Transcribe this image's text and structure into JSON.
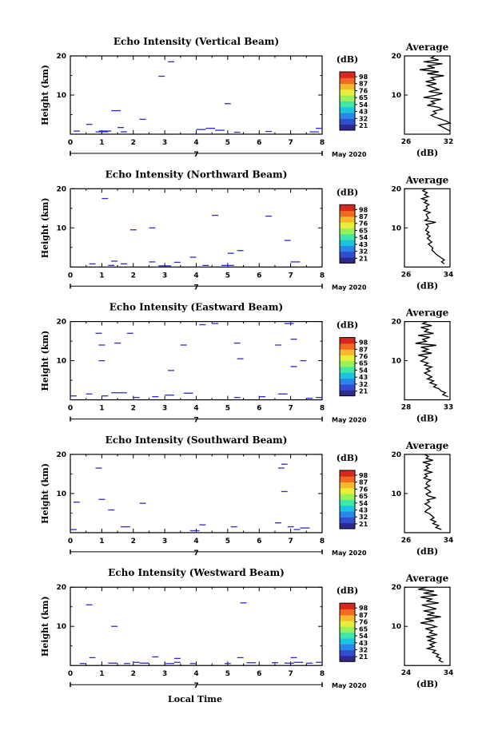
{
  "figure": {
    "xlabel": "Local Time",
    "date_label": "May 2020",
    "day_marker": "7",
    "cbar_unit": "(dB)",
    "avg_title": "Average",
    "avg_xunit": "(dB)",
    "ylabel": "Height (km)"
  },
  "colors": {
    "echo": "#2a2ad0",
    "colorbar": [
      "#2e2a8c",
      "#2f4fd0",
      "#2a86e8",
      "#1cc4e0",
      "#3ee6a8",
      "#98f05a",
      "#e6ee3a",
      "#f8b82e",
      "#f06a22",
      "#d8281e"
    ]
  },
  "chart_data": [
    {
      "type": "heatmap",
      "title": "Echo Intensity (Vertical Beam)",
      "xlim": [
        0,
        8
      ],
      "ylim": [
        0,
        20
      ],
      "xticks": [
        "0",
        "1",
        "2",
        "3",
        "4",
        "5",
        "6",
        "7",
        "8"
      ],
      "yticks": [
        "10",
        "20"
      ],
      "cbar_ticks": [
        "98",
        "87",
        "76",
        "65",
        "54",
        "43",
        "32",
        "21"
      ],
      "echoes": [
        [
          0.1,
          0.3,
          0.8
        ],
        [
          0.5,
          0.7,
          2.5
        ],
        [
          0.8,
          1.2,
          0.6
        ],
        [
          0.9,
          1.3,
          0.8
        ],
        [
          1.3,
          1.6,
          6.0
        ],
        [
          1.5,
          1.7,
          1.7
        ],
        [
          1.6,
          1.8,
          0.6
        ],
        [
          2.2,
          2.4,
          3.8
        ],
        [
          2.8,
          3.0,
          14.8
        ],
        [
          3.1,
          3.3,
          18.5
        ],
        [
          4.0,
          4.3,
          1.2
        ],
        [
          4.3,
          4.6,
          1.5
        ],
        [
          4.6,
          4.9,
          1.0
        ],
        [
          4.9,
          5.1,
          7.8
        ],
        [
          5.2,
          5.4,
          0.5
        ],
        [
          6.2,
          6.4,
          0.7
        ],
        [
          7.6,
          7.9,
          0.6
        ],
        [
          7.8,
          8.0,
          1.5
        ]
      ],
      "average": {
        "xlim": [
          26,
          32
        ],
        "xticks": [
          "26",
          "32"
        ],
        "yticks": [
          "10",
          "20"
        ],
        "x": [
          30,
          29.5,
          30.5,
          28.5,
          31,
          29,
          30,
          28,
          30.5,
          29,
          31.2,
          29.5,
          30,
          28.8,
          30.2,
          29,
          29.8,
          30.5,
          29.2,
          31,
          30,
          28.5,
          30.8,
          29.5,
          30,
          29,
          30.5,
          31,
          29.8,
          30.2,
          29.5,
          30,
          30.8,
          31.5,
          32,
          30.5,
          31,
          31.5,
          32
        ]
      }
    },
    {
      "type": "heatmap",
      "title": "Echo Intensity (Northward Beam)",
      "xlim": [
        0,
        8
      ],
      "ylim": [
        0,
        20
      ],
      "xticks": [
        "0",
        "1",
        "2",
        "3",
        "4",
        "5",
        "6",
        "7",
        "8"
      ],
      "yticks": [
        "10",
        "20"
      ],
      "cbar_ticks": [
        "98",
        "87",
        "76",
        "65",
        "54",
        "43",
        "32",
        "21"
      ],
      "echoes": [
        [
          0.6,
          0.8,
          0.8
        ],
        [
          1.0,
          1.2,
          17.5
        ],
        [
          1.2,
          1.4,
          0.4
        ],
        [
          1.3,
          1.5,
          1.5
        ],
        [
          1.6,
          1.8,
          0.8
        ],
        [
          1.9,
          2.1,
          9.5
        ],
        [
          2.5,
          2.7,
          1.3
        ],
        [
          2.5,
          2.7,
          10.0
        ],
        [
          2.8,
          3.2,
          0.3
        ],
        [
          3.3,
          3.5,
          1.2
        ],
        [
          3.8,
          4.0,
          2.5
        ],
        [
          4.2,
          4.4,
          0.4
        ],
        [
          4.5,
          4.7,
          13.2
        ],
        [
          4.8,
          5.2,
          0.4
        ],
        [
          5.0,
          5.2,
          3.5
        ],
        [
          5.3,
          5.5,
          4.2
        ],
        [
          6.2,
          6.4,
          13.0
        ],
        [
          6.8,
          7.0,
          6.8
        ],
        [
          7.0,
          7.3,
          1.3
        ]
      ],
      "average": {
        "xlim": [
          26,
          34
        ],
        "xticks": [
          "26",
          "34"
        ],
        "yticks": [
          "10",
          "20"
        ],
        "x": [
          29.8,
          29.2,
          30,
          29.5,
          30.2,
          29,
          30,
          29.5,
          30.3,
          29.8,
          30,
          29.4,
          30.5,
          29.8,
          30,
          30.2,
          29.6,
          31.5,
          29.8,
          30.2,
          30,
          29.7,
          30.3,
          29.9,
          30.5,
          30,
          30.4,
          30.8,
          30.2,
          30.6,
          31,
          30.8,
          31.2,
          31.5,
          32,
          32.5,
          33,
          32.5,
          33
        ]
      }
    },
    {
      "type": "heatmap",
      "title": "Echo Intensity (Eastward Beam)",
      "xlim": [
        0,
        8
      ],
      "ylim": [
        0,
        20
      ],
      "xticks": [
        "0",
        "1",
        "2",
        "3",
        "4",
        "5",
        "6",
        "7",
        "8"
      ],
      "yticks": [
        "10",
        "20"
      ],
      "cbar_ticks": [
        "98",
        "87",
        "76",
        "65",
        "54",
        "43",
        "32",
        "21"
      ],
      "echoes": [
        [
          0.0,
          0.2,
          1.0
        ],
        [
          0.5,
          0.7,
          1.5
        ],
        [
          0.8,
          1.0,
          17.0
        ],
        [
          0.9,
          1.1,
          14.0
        ],
        [
          0.9,
          1.1,
          10.0
        ],
        [
          1.0,
          1.2,
          1.0
        ],
        [
          1.3,
          1.8,
          1.8
        ],
        [
          1.4,
          1.6,
          14.5
        ],
        [
          1.8,
          2.0,
          17.0
        ],
        [
          2.0,
          2.2,
          0.6
        ],
        [
          2.6,
          2.8,
          0.8
        ],
        [
          3.0,
          3.3,
          1.2
        ],
        [
          3.1,
          3.3,
          7.5
        ],
        [
          3.5,
          3.7,
          14.0
        ],
        [
          3.6,
          3.9,
          1.7
        ],
        [
          4.1,
          4.3,
          19.2
        ],
        [
          4.5,
          4.7,
          19.5
        ],
        [
          5.2,
          5.4,
          0.6
        ],
        [
          5.2,
          5.4,
          14.5
        ],
        [
          5.3,
          5.5,
          10.5
        ],
        [
          6.0,
          6.2,
          0.8
        ],
        [
          6.5,
          6.7,
          14.0
        ],
        [
          6.6,
          6.9,
          1.5
        ],
        [
          6.8,
          7.1,
          19.5
        ],
        [
          7.0,
          7.2,
          8.5
        ],
        [
          7.0,
          7.2,
          15.5
        ],
        [
          7.3,
          7.5,
          10.0
        ],
        [
          7.5,
          7.7,
          0.4
        ],
        [
          7.8,
          8.0,
          0.6
        ]
      ],
      "average": {
        "xlim": [
          28,
          33
        ],
        "xticks": [
          "28",
          "33"
        ],
        "yticks": [
          "10",
          "20"
        ],
        "x": [
          30.5,
          30,
          31,
          29.8,
          30.6,
          30.2,
          31.2,
          29.5,
          30.8,
          30,
          30.4,
          29.2,
          31.5,
          29.8,
          30.6,
          30,
          31,
          29.5,
          30.5,
          30.2,
          29.8,
          30.6,
          30.2,
          31,
          30.4,
          30.8,
          30.2,
          30.6,
          31,
          30.5,
          31.2,
          30.8,
          31.5,
          31.2,
          31.8,
          32,
          32.5,
          32.2,
          32.8
        ]
      }
    },
    {
      "type": "heatmap",
      "title": "Echo Intensity (Southward Beam)",
      "xlim": [
        0,
        8
      ],
      "ylim": [
        0,
        20
      ],
      "xticks": [
        "0",
        "1",
        "2",
        "3",
        "4",
        "5",
        "6",
        "7",
        "8"
      ],
      "yticks": [
        "10",
        "20"
      ],
      "cbar_ticks": [
        "98",
        "87",
        "76",
        "65",
        "54",
        "43",
        "32",
        "21"
      ],
      "echoes": [
        [
          0.0,
          0.2,
          0.8
        ],
        [
          0.1,
          0.3,
          7.8
        ],
        [
          0.8,
          1.0,
          16.5
        ],
        [
          0.9,
          1.1,
          8.5
        ],
        [
          1.2,
          1.4,
          5.8
        ],
        [
          1.6,
          1.9,
          1.5
        ],
        [
          2.2,
          2.4,
          7.5
        ],
        [
          3.8,
          4.1,
          0.5
        ],
        [
          4.1,
          4.3,
          2.0
        ],
        [
          5.1,
          5.3,
          1.5
        ],
        [
          6.5,
          6.7,
          2.5
        ],
        [
          6.6,
          6.8,
          16.5
        ],
        [
          6.7,
          6.9,
          17.5
        ],
        [
          6.7,
          6.9,
          10.5
        ],
        [
          6.9,
          7.1,
          1.5
        ],
        [
          7.1,
          7.3,
          0.8
        ],
        [
          7.3,
          7.6,
          1.2
        ]
      ],
      "average": {
        "xlim": [
          26,
          34
        ],
        "xticks": [
          "26",
          "34"
        ],
        "yticks": [
          "10",
          "20"
        ],
        "x": [
          29.5,
          30.2,
          29.8,
          31,
          29.2,
          30.5,
          29.8,
          30.2,
          29.5,
          30.8,
          29.6,
          30,
          29.4,
          30.6,
          30,
          29.8,
          30.4,
          29.6,
          30.2,
          30.6,
          29.8,
          30.2,
          31.5,
          30,
          30.4,
          29.6,
          30.2,
          30.6,
          30,
          29.6,
          30.4,
          30.8,
          31.2,
          30.6,
          31.5,
          31,
          32,
          31.5,
          32.5
        ]
      }
    },
    {
      "type": "heatmap",
      "title": "Echo Intensity (Westward Beam)",
      "xlim": [
        0,
        8
      ],
      "ylim": [
        0,
        20
      ],
      "xticks": [
        "0",
        "1",
        "2",
        "3",
        "4",
        "5",
        "6",
        "7",
        "8"
      ],
      "yticks": [
        "10",
        "20"
      ],
      "cbar_ticks": [
        "98",
        "87",
        "76",
        "65",
        "54",
        "43",
        "32",
        "21"
      ],
      "echoes": [
        [
          0.3,
          0.5,
          0.5
        ],
        [
          0.5,
          0.7,
          15.5
        ],
        [
          0.6,
          0.8,
          2.0
        ],
        [
          1.2,
          1.5,
          0.6
        ],
        [
          1.3,
          1.5,
          10.0
        ],
        [
          1.7,
          1.9,
          0.5
        ],
        [
          2.0,
          2.2,
          0.8
        ],
        [
          2.2,
          2.5,
          0.6
        ],
        [
          2.6,
          2.8,
          2.2
        ],
        [
          3.0,
          3.3,
          0.5
        ],
        [
          3.3,
          3.5,
          0.8
        ],
        [
          3.3,
          3.5,
          1.8
        ],
        [
          3.8,
          4.0,
          0.5
        ],
        [
          4.9,
          5.1,
          0.5
        ],
        [
          5.3,
          5.5,
          2.0
        ],
        [
          5.4,
          5.6,
          16.0
        ],
        [
          5.6,
          5.9,
          0.7
        ],
        [
          6.4,
          6.6,
          0.7
        ],
        [
          6.8,
          7.1,
          0.6
        ],
        [
          7.0,
          7.2,
          2.0
        ],
        [
          7.1,
          7.4,
          0.8
        ],
        [
          7.5,
          7.7,
          0.6
        ],
        [
          7.8,
          8.0,
          0.8
        ]
      ],
      "average": {
        "xlim": [
          24,
          34
        ],
        "xticks": [
          "24",
          "34"
        ],
        "yticks": [
          "10",
          "20"
        ],
        "x": [
          29,
          27,
          30.5,
          28.2,
          31.2,
          27.5,
          30,
          28.8,
          31.5,
          27.8,
          29.5,
          31,
          28.2,
          30.6,
          29,
          32,
          28.5,
          30.5,
          27.5,
          29.8,
          31,
          28.6,
          30.2,
          29.5,
          31.2,
          28.8,
          30.5,
          29.2,
          30.8,
          29.6,
          30.4,
          29,
          30.8,
          30.2,
          31.5,
          31,
          32,
          31.6,
          32.5
        ]
      }
    }
  ]
}
